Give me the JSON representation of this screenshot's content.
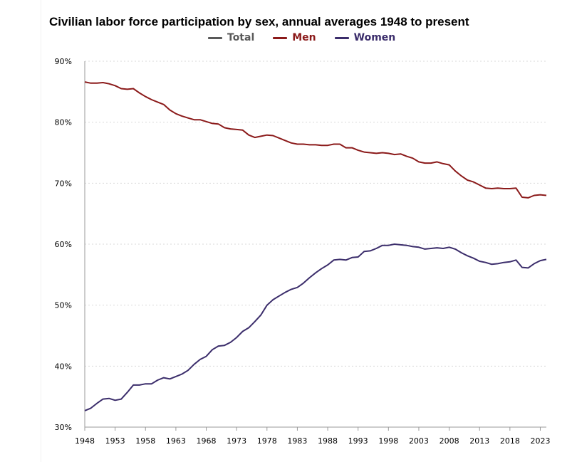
{
  "chart_data": {
    "type": "line",
    "title": "Civilian labor force participation by sex, annual averages 1948 to present",
    "xlabel": "",
    "ylabel": "",
    "ylim": [
      30,
      90
    ],
    "xlim": [
      1948,
      2024
    ],
    "y_ticks": [
      30,
      40,
      50,
      60,
      70,
      80,
      90
    ],
    "y_tick_labels": [
      "30%",
      "40%",
      "50%",
      "60%",
      "70%",
      "80%",
      "90%"
    ],
    "x_tick_labels": [
      "1948",
      "1953",
      "1958",
      "1963",
      "1968",
      "1973",
      "1978",
      "1983",
      "1988",
      "1993",
      "1998",
      "2003",
      "2008",
      "2013",
      "2018",
      "2023"
    ],
    "grid": true,
    "legend": "top-center",
    "x": [
      1948,
      1949,
      1950,
      1951,
      1952,
      1953,
      1954,
      1955,
      1956,
      1957,
      1958,
      1959,
      1960,
      1961,
      1962,
      1963,
      1964,
      1965,
      1966,
      1967,
      1968,
      1969,
      1970,
      1971,
      1972,
      1973,
      1974,
      1975,
      1976,
      1977,
      1978,
      1979,
      1980,
      1981,
      1982,
      1983,
      1984,
      1985,
      1986,
      1987,
      1988,
      1989,
      1990,
      1991,
      1992,
      1993,
      1994,
      1995,
      1996,
      1997,
      1998,
      1999,
      2000,
      2001,
      2002,
      2003,
      2004,
      2005,
      2006,
      2007,
      2008,
      2009,
      2010,
      2011,
      2012,
      2013,
      2014,
      2015,
      2016,
      2017,
      2018,
      2019,
      2020,
      2021,
      2022,
      2023,
      2024
    ],
    "series": [
      {
        "name": "Total",
        "color": "#595959",
        "values": null
      },
      {
        "name": "Men",
        "color": "#8b1a1a",
        "values": [
          86.6,
          86.4,
          86.4,
          86.5,
          86.3,
          86.0,
          85.5,
          85.4,
          85.5,
          84.8,
          84.2,
          83.7,
          83.3,
          82.9,
          82.0,
          81.4,
          81.0,
          80.7,
          80.4,
          80.4,
          80.1,
          79.8,
          79.7,
          79.1,
          78.9,
          78.8,
          78.7,
          77.9,
          77.5,
          77.7,
          77.9,
          77.8,
          77.4,
          77.0,
          76.6,
          76.4,
          76.4,
          76.3,
          76.3,
          76.2,
          76.2,
          76.4,
          76.4,
          75.8,
          75.8,
          75.4,
          75.1,
          75.0,
          74.9,
          75.0,
          74.9,
          74.7,
          74.8,
          74.4,
          74.1,
          73.5,
          73.3,
          73.3,
          73.5,
          73.2,
          73.0,
          72.0,
          71.2,
          70.5,
          70.2,
          69.7,
          69.2,
          69.1,
          69.2,
          69.1,
          69.1,
          69.2,
          67.7,
          67.6,
          68.0,
          68.1,
          68.0
        ]
      },
      {
        "name": "Women",
        "color": "#3b2d6b",
        "values": [
          32.7,
          33.1,
          33.9,
          34.6,
          34.7,
          34.4,
          34.6,
          35.7,
          36.9,
          36.9,
          37.1,
          37.1,
          37.7,
          38.1,
          37.9,
          38.3,
          38.7,
          39.3,
          40.3,
          41.1,
          41.6,
          42.7,
          43.3,
          43.4,
          43.9,
          44.7,
          45.7,
          46.3,
          47.3,
          48.4,
          50.0,
          50.9,
          51.5,
          52.1,
          52.6,
          52.9,
          53.6,
          54.5,
          55.3,
          56.0,
          56.6,
          57.4,
          57.5,
          57.4,
          57.8,
          57.9,
          58.8,
          58.9,
          59.3,
          59.8,
          59.8,
          60.0,
          59.9,
          59.8,
          59.6,
          59.5,
          59.2,
          59.3,
          59.4,
          59.3,
          59.5,
          59.2,
          58.6,
          58.1,
          57.7,
          57.2,
          57.0,
          56.7,
          56.8,
          57.0,
          57.1,
          57.4,
          56.2,
          56.1,
          56.8,
          57.3,
          57.5
        ]
      }
    ]
  }
}
